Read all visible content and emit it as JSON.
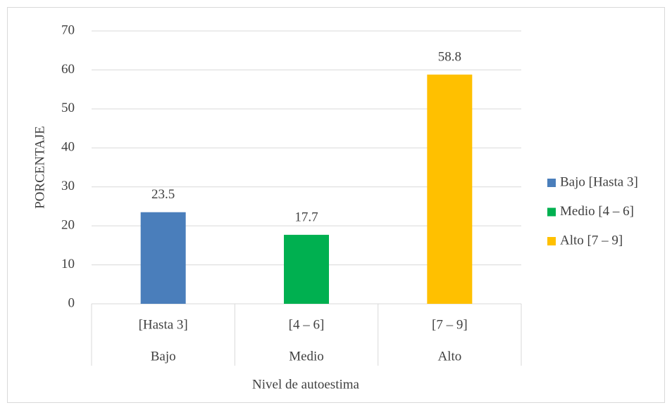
{
  "chart_data": {
    "type": "bar",
    "categories": [
      "[Hasta 3]",
      "[4 – 6]",
      "[7 – 9]"
    ],
    "groups": [
      "Bajo",
      "Medio",
      "Alto"
    ],
    "values": [
      23.5,
      17.7,
      58.8
    ],
    "colors": [
      "#4a7ebb",
      "#00b050",
      "#ffc000"
    ],
    "legend": [
      "Bajo [Hasta 3]",
      "Medio [4 – 6]",
      "Alto [7 – 9]"
    ],
    "legend_position": "right",
    "x_label": "Nivel de autoestima",
    "y_label": "PORCENTAJE",
    "ylim": [
      0,
      70
    ],
    "yticks": [
      0,
      10,
      20,
      30,
      40,
      50,
      60,
      70
    ],
    "grid": true
  }
}
